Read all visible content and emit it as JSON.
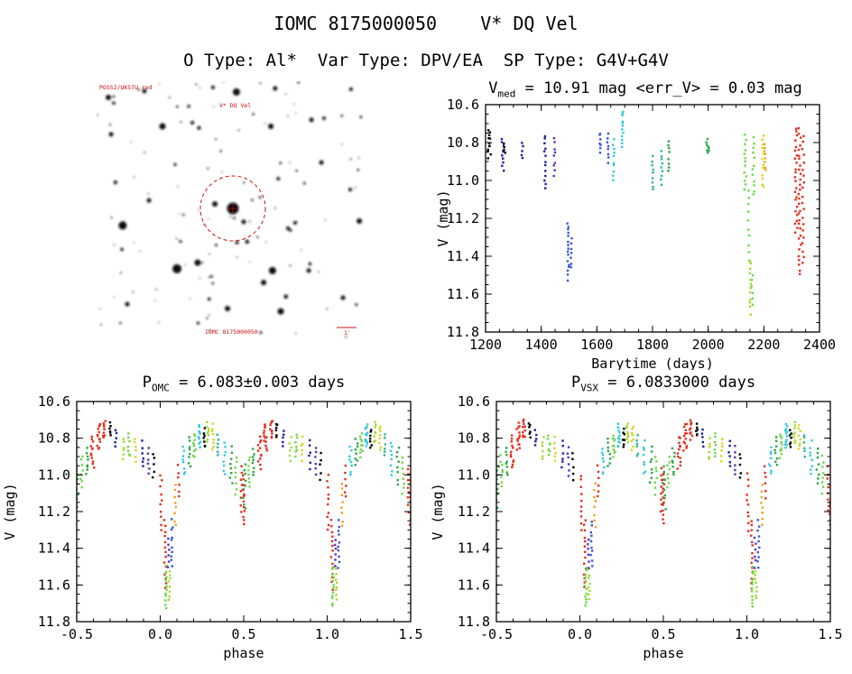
{
  "page": {
    "title": "IOMC 8175000050    V* DQ Vel",
    "subtitle": "O Type: Al*  Var Type: DPV/EA  SP Type: G4V+G4V"
  },
  "colors": {
    "axis": "#000000",
    "annotation_red": "#cc1111",
    "palette": {
      "k": "#000000",
      "nv": "#20209a",
      "pu": "#5a35b4",
      "bl": "#3a55d9",
      "cy": "#35c8dc",
      "te": "#2fb4a0",
      "gr": "#2fa44a",
      "lg": "#6fd84a",
      "gy": "#a8d832",
      "ye": "#d6d620",
      "or": "#f0a01e",
      "re": "#e0301e"
    }
  },
  "finder": {
    "annotation_color": "#cc1111",
    "labels": {
      "top_left": "POSS2/UKSTU red",
      "source": "V* DQ Vel",
      "bottom": "IOMC 8175000050",
      "scale": "1'"
    },
    "seed": 11,
    "n_random_stars": 115,
    "big_stars": [
      [
        0.044,
        0.063,
        3
      ],
      [
        0.178,
        0.038,
        2.5
      ],
      [
        0.433,
        0.024,
        2
      ],
      [
        0.52,
        0.042,
        4
      ],
      [
        0.664,
        0.028,
        2.5
      ],
      [
        0.946,
        0.031,
        2
      ],
      [
        0.054,
        0.206,
        2.5
      ],
      [
        0.245,
        0.175,
        3.5
      ],
      [
        0.356,
        0.161,
        2
      ],
      [
        0.648,
        0.175,
        3
      ],
      [
        0.799,
        0.15,
        2.5
      ],
      [
        0.07,
        0.392,
        2
      ],
      [
        0.097,
        0.559,
        4.5
      ],
      [
        0.195,
        0.462,
        2.5
      ],
      [
        0.44,
        0.476,
        3
      ],
      [
        0.547,
        0.545,
        2.5
      ],
      [
        0.738,
        0.549,
        2
      ],
      [
        0.977,
        0.542,
        3
      ],
      [
        0.299,
        0.727,
        5
      ],
      [
        0.376,
        0.703,
        3.5
      ],
      [
        0.654,
        0.734,
        4
      ],
      [
        0.621,
        0.78,
        3
      ],
      [
        0.789,
        0.734,
        2.5
      ],
      [
        0.487,
        0.881,
        3
      ],
      [
        0.685,
        0.892,
        3.5
      ],
      [
        0.114,
        0.864,
        2.5
      ],
      [
        0.916,
        0.839,
        2.5
      ],
      [
        0.836,
        0.315,
        2.5
      ],
      [
        0.943,
        0.42,
        2
      ]
    ]
  },
  "chart_data": [
    {
      "id": "ts",
      "name": "V magnitude vs barycentric time",
      "type": "scatter",
      "title_segments": [
        {
          "t": "V"
        },
        {
          "t": "med",
          "sub": true
        },
        {
          "t": " = 10.91 mag <err_V> = 0.03 mag"
        }
      ],
      "xlabel": "Barytime (days)",
      "ylabel": "V (mag)",
      "xlim": [
        1200,
        2400
      ],
      "ylim": [
        10.6,
        11.8
      ],
      "y_inverted": true,
      "xticks": [
        1200,
        1400,
        1600,
        1800,
        2000,
        2200,
        2400
      ],
      "xtick_labels": [
        "1200",
        "1400",
        "1600",
        "1800",
        "2000",
        "2200",
        "2400"
      ],
      "yticks": [
        10.6,
        10.8,
        11.0,
        11.2,
        11.4,
        11.6,
        11.8
      ],
      "ytick_labels": [
        "10.6",
        "10.8",
        "11.0",
        "11.2",
        "11.4",
        "11.6",
        "11.8"
      ],
      "xminor": 50,
      "yminor": 0.05,
      "grid": false,
      "legend": false,
      "clusters": [
        [
          1215,
          14,
          10.73,
          10.88,
          12,
          "k"
        ],
        [
          1262,
          8,
          10.78,
          10.95,
          10,
          "nv"
        ],
        [
          1268,
          6,
          10.8,
          10.86,
          4,
          "k"
        ],
        [
          1332,
          6,
          10.8,
          10.88,
          5,
          "nv"
        ],
        [
          1414,
          6,
          10.76,
          11.04,
          13,
          "nv"
        ],
        [
          1448,
          6,
          10.78,
          10.97,
          9,
          "pu"
        ],
        [
          1497,
          8,
          11.22,
          11.52,
          16,
          "bl"
        ],
        [
          1507,
          6,
          11.3,
          11.46,
          7,
          "bl"
        ],
        [
          1613,
          6,
          10.75,
          10.85,
          7,
          "bl"
        ],
        [
          1640,
          6,
          10.76,
          10.9,
          8,
          "bl"
        ],
        [
          1660,
          5,
          10.78,
          11.0,
          10,
          "cy"
        ],
        [
          1692,
          6,
          10.63,
          10.82,
          12,
          "cy"
        ],
        [
          1800,
          6,
          10.88,
          11.05,
          9,
          "te"
        ],
        [
          1833,
          6,
          10.85,
          11.02,
          9,
          "te"
        ],
        [
          1858,
          6,
          10.79,
          10.95,
          8,
          "gr"
        ],
        [
          1998,
          10,
          10.78,
          10.86,
          8,
          "gr"
        ],
        [
          2133,
          8,
          10.76,
          11.05,
          13,
          "lg"
        ],
        [
          2146,
          6,
          11.05,
          11.42,
          10,
          "lg"
        ],
        [
          2152,
          6,
          11.42,
          11.7,
          12,
          "gy"
        ],
        [
          2158,
          6,
          11.5,
          11.66,
          6,
          "lg"
        ],
        [
          2163,
          8,
          10.78,
          11.08,
          12,
          "lg"
        ],
        [
          2197,
          7,
          10.76,
          11.04,
          12,
          "ye"
        ],
        [
          2204,
          6,
          10.8,
          10.95,
          8,
          "or"
        ],
        [
          2316,
          9,
          10.72,
          11.28,
          24,
          "re"
        ],
        [
          2329,
          9,
          10.73,
          11.5,
          30,
          "re"
        ],
        [
          2341,
          7,
          10.76,
          11.44,
          20,
          "re"
        ]
      ]
    },
    {
      "id": "pomc",
      "name": "V magnitude vs phase (OMC period)",
      "type": "scatter",
      "title_segments": [
        {
          "t": "P"
        },
        {
          "t": "OMC",
          "sub": true
        },
        {
          "t": " = 6.083±0.003 days"
        }
      ],
      "xlabel": "phase",
      "ylabel": "V (mag)",
      "xlim": [
        -0.5,
        1.5
      ],
      "ylim": [
        10.6,
        11.8
      ],
      "y_inverted": true,
      "phase_repeat": true,
      "xticks": [
        -0.5,
        0.0,
        0.5,
        1.0,
        1.5
      ],
      "xtick_labels": [
        "-0.5",
        "0.0",
        "0.5",
        "1.0",
        "1.5"
      ],
      "yticks": [
        10.6,
        10.8,
        11.0,
        11.2,
        11.4,
        11.6,
        11.8
      ],
      "ytick_labels": [
        "10.6",
        "10.8",
        "11.0",
        "11.2",
        "11.4",
        "11.6",
        "11.8"
      ],
      "xminor": 0.1,
      "yminor": 0.05,
      "grid": false,
      "legend": false,
      "clusters": [
        [
          -0.495,
          0.02,
          10.95,
          11.18,
          10,
          "gr"
        ],
        [
          -0.47,
          0.015,
          10.9,
          11.06,
          8,
          "lg"
        ],
        [
          -0.44,
          0.015,
          10.86,
          11.0,
          8,
          "gr"
        ],
        [
          -0.405,
          0.02,
          10.79,
          10.96,
          12,
          "re"
        ],
        [
          -0.37,
          0.02,
          10.72,
          10.86,
          13,
          "re"
        ],
        [
          -0.335,
          0.015,
          10.7,
          10.8,
          10,
          "re"
        ],
        [
          -0.3,
          0.012,
          10.72,
          10.79,
          6,
          "k"
        ],
        [
          -0.265,
          0.01,
          10.76,
          10.84,
          5,
          "nv"
        ],
        [
          -0.22,
          0.015,
          10.8,
          10.92,
          6,
          "gy"
        ],
        [
          -0.185,
          0.015,
          10.78,
          10.9,
          7,
          "lg"
        ],
        [
          -0.15,
          0.01,
          10.8,
          10.92,
          6,
          "ye"
        ],
        [
          -0.105,
          0.01,
          10.82,
          10.96,
          6,
          "nv"
        ],
        [
          -0.07,
          0.01,
          10.85,
          11.0,
          6,
          "pu"
        ],
        [
          -0.04,
          0.01,
          10.88,
          11.02,
          5,
          "k"
        ],
        [
          0.005,
          0.01,
          11.0,
          11.3,
          10,
          "re"
        ],
        [
          0.03,
          0.012,
          11.25,
          11.62,
          14,
          "re"
        ],
        [
          0.035,
          0.012,
          11.5,
          11.72,
          12,
          "lg"
        ],
        [
          0.055,
          0.01,
          11.52,
          11.68,
          8,
          "gy"
        ],
        [
          0.05,
          0.008,
          11.35,
          11.5,
          6,
          "pu"
        ],
        [
          0.07,
          0.01,
          11.25,
          11.5,
          10,
          "bl"
        ],
        [
          0.09,
          0.01,
          11.05,
          11.28,
          8,
          "or"
        ],
        [
          0.11,
          0.01,
          10.95,
          11.12,
          6,
          "re"
        ],
        [
          0.14,
          0.015,
          10.85,
          11.0,
          8,
          "cy"
        ],
        [
          0.175,
          0.015,
          10.8,
          10.95,
          8,
          "gr"
        ],
        [
          0.205,
          0.015,
          10.78,
          10.9,
          10,
          "lg"
        ],
        [
          0.235,
          0.015,
          10.72,
          10.85,
          12,
          "cy"
        ],
        [
          0.262,
          0.012,
          10.75,
          10.85,
          7,
          "k"
        ],
        [
          0.285,
          0.012,
          10.72,
          10.82,
          8,
          "gy"
        ],
        [
          0.315,
          0.012,
          10.73,
          10.86,
          8,
          "ye"
        ],
        [
          0.345,
          0.01,
          10.78,
          10.9,
          6,
          "te"
        ],
        [
          0.385,
          0.015,
          10.82,
          11.0,
          8,
          "cy"
        ],
        [
          0.425,
          0.015,
          10.85,
          11.05,
          8,
          "gr"
        ],
        [
          0.455,
          0.012,
          10.9,
          11.1,
          8,
          "lg"
        ],
        [
          0.487,
          0.01,
          10.96,
          11.2,
          8,
          "re"
        ],
        [
          0.5,
          0.01,
          11.0,
          11.27,
          12,
          "re"
        ]
      ]
    },
    {
      "id": "pvsx",
      "name": "V magnitude vs phase (VSX period)",
      "type": "scatter",
      "title_segments": [
        {
          "t": "P"
        },
        {
          "t": "VSX",
          "sub": true
        },
        {
          "t": " = 6.0833000 days"
        }
      ],
      "xlabel": "phase",
      "ylabel": "V (mag)",
      "xlim": [
        -0.5,
        1.5
      ],
      "ylim": [
        10.6,
        11.8
      ],
      "y_inverted": true,
      "phase_repeat": true,
      "xticks": [
        -0.5,
        0.0,
        0.5,
        1.0,
        1.5
      ],
      "xtick_labels": [
        "-0.5",
        "0.0",
        "0.5",
        "1.0",
        "1.5"
      ],
      "yticks": [
        10.6,
        10.8,
        11.0,
        11.2,
        11.4,
        11.6,
        11.8
      ],
      "ytick_labels": [
        "10.6",
        "10.8",
        "11.0",
        "11.2",
        "11.4",
        "11.6",
        "11.8"
      ],
      "xminor": 0.1,
      "yminor": 0.05,
      "grid": false,
      "legend": false,
      "clusters": [
        [
          -0.495,
          0.02,
          10.95,
          11.18,
          10,
          "gr"
        ],
        [
          -0.47,
          0.015,
          10.9,
          11.06,
          8,
          "lg"
        ],
        [
          -0.44,
          0.015,
          10.86,
          11.0,
          8,
          "gr"
        ],
        [
          -0.405,
          0.02,
          10.79,
          10.96,
          12,
          "re"
        ],
        [
          -0.37,
          0.02,
          10.72,
          10.86,
          13,
          "re"
        ],
        [
          -0.335,
          0.015,
          10.7,
          10.8,
          10,
          "re"
        ],
        [
          -0.3,
          0.012,
          10.72,
          10.79,
          6,
          "k"
        ],
        [
          -0.265,
          0.01,
          10.76,
          10.84,
          5,
          "nv"
        ],
        [
          -0.22,
          0.015,
          10.8,
          10.92,
          6,
          "gy"
        ],
        [
          -0.185,
          0.015,
          10.78,
          10.9,
          7,
          "lg"
        ],
        [
          -0.15,
          0.01,
          10.8,
          10.92,
          6,
          "ye"
        ],
        [
          -0.105,
          0.01,
          10.82,
          10.96,
          6,
          "nv"
        ],
        [
          -0.07,
          0.01,
          10.85,
          11.0,
          6,
          "pu"
        ],
        [
          -0.04,
          0.01,
          10.88,
          11.02,
          5,
          "k"
        ],
        [
          0.005,
          0.01,
          11.0,
          11.3,
          10,
          "re"
        ],
        [
          0.03,
          0.012,
          11.25,
          11.62,
          14,
          "re"
        ],
        [
          0.035,
          0.012,
          11.5,
          11.72,
          12,
          "lg"
        ],
        [
          0.055,
          0.01,
          11.52,
          11.68,
          8,
          "gy"
        ],
        [
          0.05,
          0.008,
          11.35,
          11.5,
          6,
          "pu"
        ],
        [
          0.07,
          0.01,
          11.25,
          11.5,
          10,
          "bl"
        ],
        [
          0.09,
          0.01,
          11.05,
          11.28,
          8,
          "or"
        ],
        [
          0.11,
          0.01,
          10.95,
          11.12,
          6,
          "re"
        ],
        [
          0.14,
          0.015,
          10.85,
          11.0,
          8,
          "cy"
        ],
        [
          0.175,
          0.015,
          10.8,
          10.95,
          8,
          "gr"
        ],
        [
          0.205,
          0.015,
          10.78,
          10.9,
          10,
          "lg"
        ],
        [
          0.235,
          0.015,
          10.72,
          10.85,
          12,
          "cy"
        ],
        [
          0.262,
          0.012,
          10.75,
          10.85,
          7,
          "k"
        ],
        [
          0.285,
          0.012,
          10.72,
          10.82,
          8,
          "gy"
        ],
        [
          0.315,
          0.012,
          10.73,
          10.86,
          8,
          "ye"
        ],
        [
          0.345,
          0.01,
          10.78,
          10.9,
          6,
          "te"
        ],
        [
          0.385,
          0.015,
          10.82,
          11.0,
          8,
          "cy"
        ],
        [
          0.425,
          0.015,
          10.85,
          11.05,
          8,
          "gr"
        ],
        [
          0.455,
          0.012,
          10.9,
          11.1,
          8,
          "lg"
        ],
        [
          0.487,
          0.01,
          10.96,
          11.2,
          8,
          "re"
        ],
        [
          0.5,
          0.01,
          11.0,
          11.27,
          12,
          "re"
        ]
      ]
    }
  ]
}
